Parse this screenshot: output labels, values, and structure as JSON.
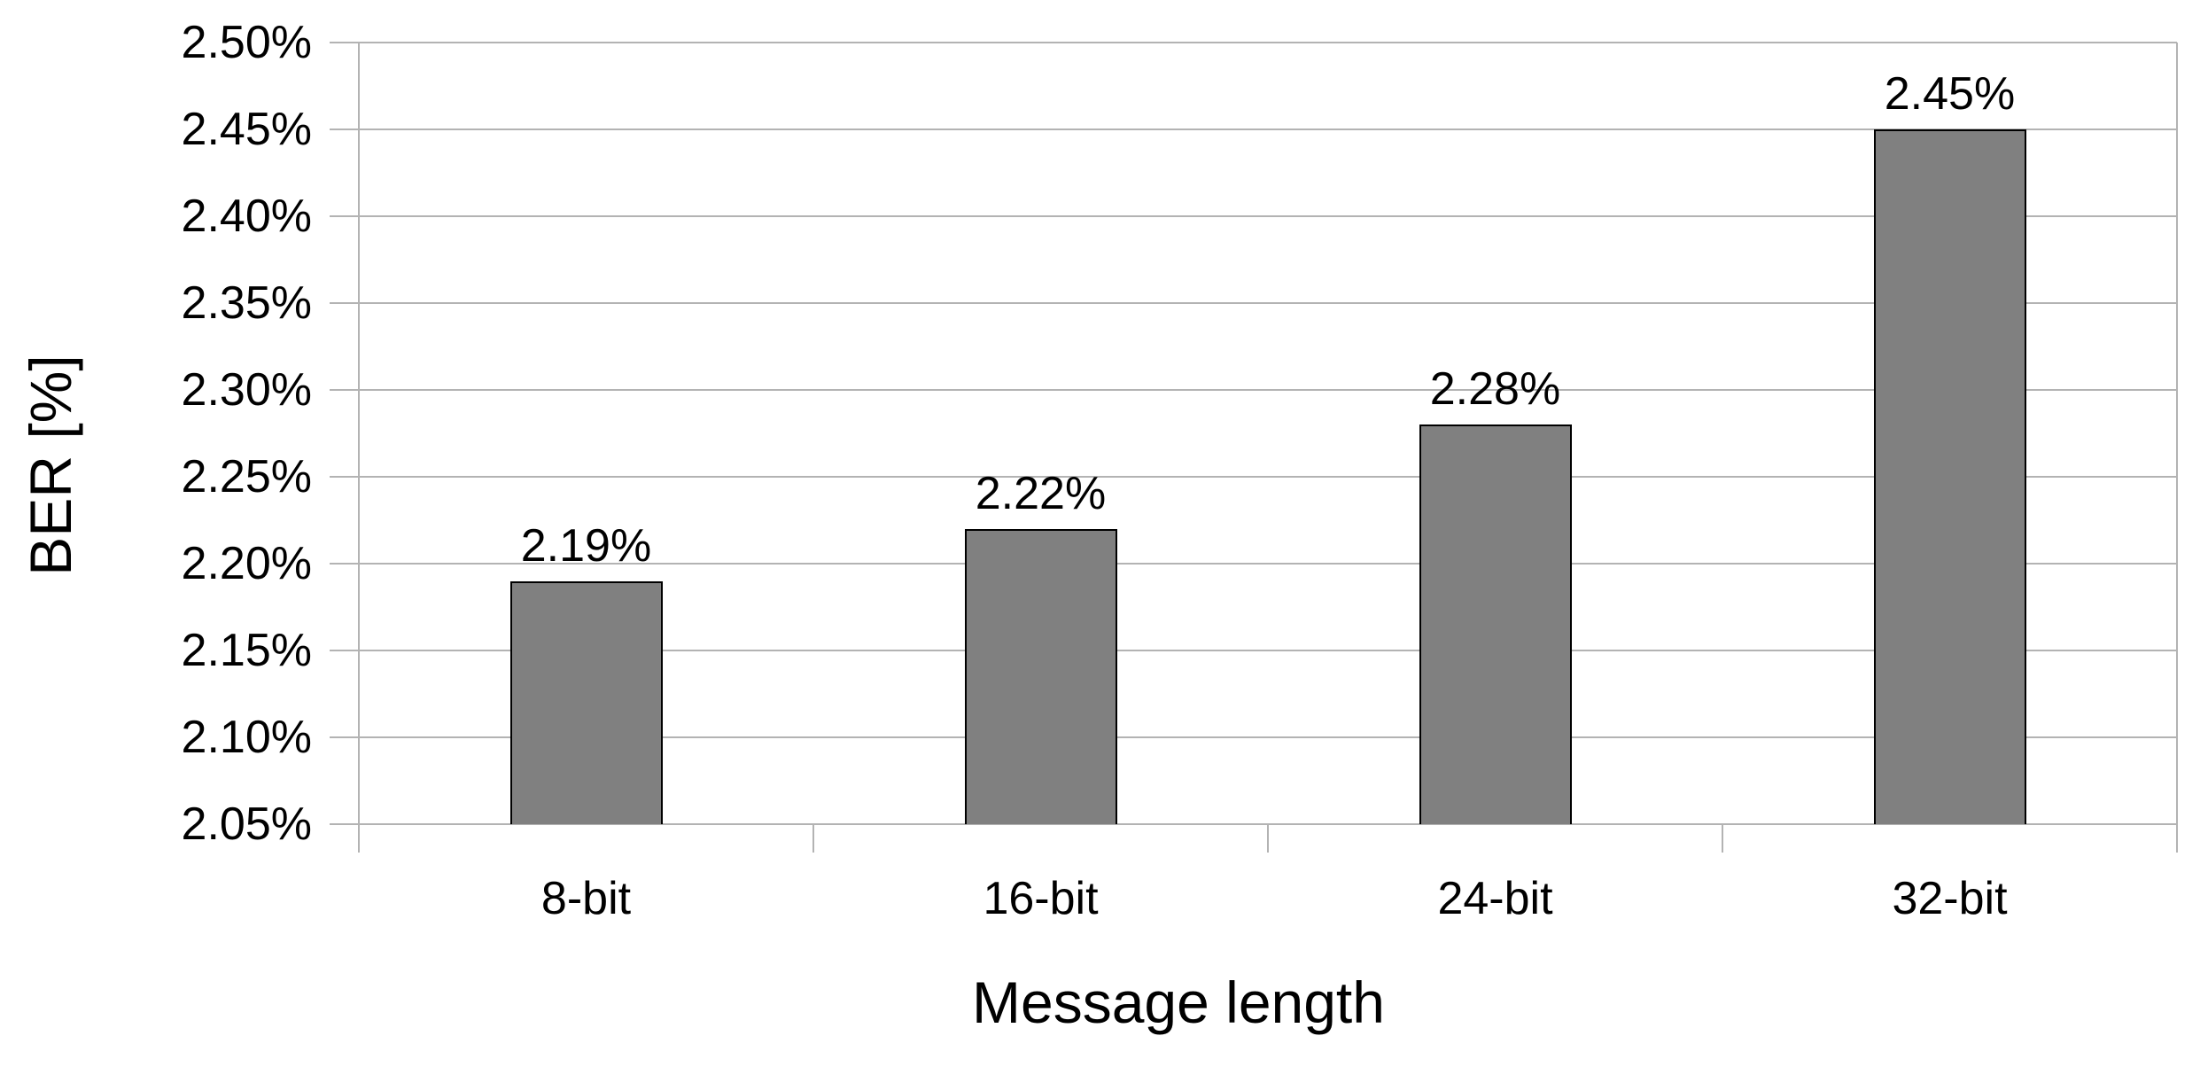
{
  "chart_data": {
    "type": "bar",
    "categories": [
      "8-bit",
      "16-bit",
      "24-bit",
      "32-bit"
    ],
    "values": [
      2.19,
      2.22,
      2.28,
      2.45
    ],
    "data_labels": [
      "2.19%",
      "2.22%",
      "2.28%",
      "2.45%"
    ],
    "title": "",
    "xlabel": "Message length",
    "ylabel": "BER [%]",
    "ylim": [
      2.05,
      2.5
    ],
    "ytick_step": 0.05,
    "yticks": [
      "2.50%",
      "2.45%",
      "2.40%",
      "2.35%",
      "2.30%",
      "2.25%",
      "2.20%",
      "2.15%",
      "2.10%",
      "2.05%"
    ],
    "grid": "horizontal",
    "legend": "none",
    "colors": {
      "bar_fill": "#808080",
      "bar_border": "#000000",
      "gridline": "#b3b3b3",
      "text": "#000000",
      "background": "#ffffff"
    }
  }
}
